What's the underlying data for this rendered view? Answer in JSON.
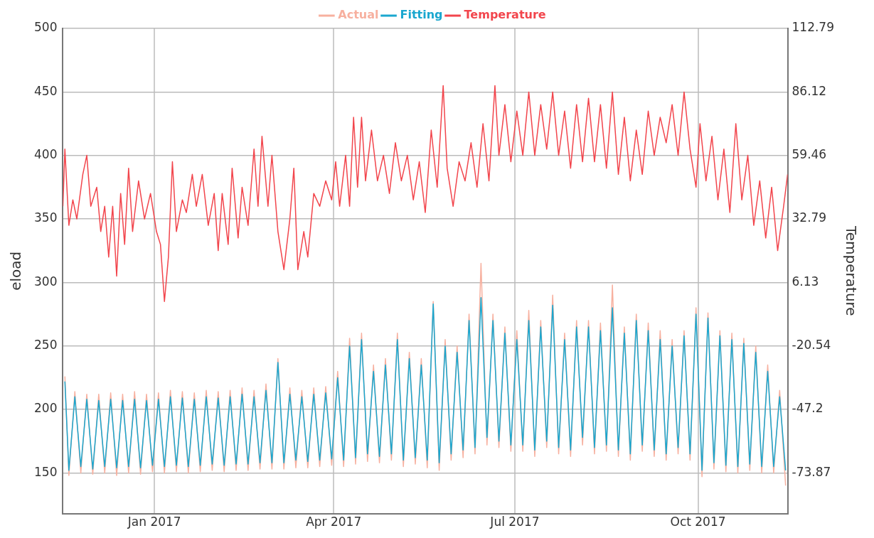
{
  "chart_data": {
    "type": "line",
    "ylabel": "eload",
    "y2label": "Temperature",
    "legend": "top",
    "grid": true,
    "xlim": [
      "2016-11-16",
      "2017-11-15"
    ],
    "xticks": [
      {
        "value": "2017-01-01",
        "label": "Jan 2017"
      },
      {
        "value": "2017-04-01",
        "label": "Apr 2017"
      },
      {
        "value": "2017-07-01",
        "label": "Jul 2017"
      },
      {
        "value": "2017-10-01",
        "label": "Oct 2017"
      }
    ],
    "ylim": [
      118,
      500
    ],
    "yticks": [
      150,
      200,
      250,
      300,
      350,
      400,
      450,
      500
    ],
    "y2lim": [
      -90.93,
      112.79
    ],
    "y2ticks": [
      -73.87,
      -47.2,
      -20.54,
      6.13,
      32.79,
      59.46,
      86.12,
      112.79
    ],
    "x": [
      "2016-11-17",
      "2016-11-19",
      "2016-11-22",
      "2016-11-25",
      "2016-11-28",
      "2016-12-01",
      "2016-12-04",
      "2016-12-07",
      "2016-12-10",
      "2016-12-13",
      "2016-12-16",
      "2016-12-19",
      "2016-12-22",
      "2016-12-25",
      "2016-12-28",
      "2016-12-31",
      "2017-01-03",
      "2017-01-06",
      "2017-01-09",
      "2017-01-12",
      "2017-01-15",
      "2017-01-18",
      "2017-01-21",
      "2017-01-24",
      "2017-01-27",
      "2017-01-30",
      "2017-02-02",
      "2017-02-05",
      "2017-02-08",
      "2017-02-11",
      "2017-02-14",
      "2017-02-17",
      "2017-02-20",
      "2017-02-23",
      "2017-02-26",
      "2017-03-01",
      "2017-03-04",
      "2017-03-07",
      "2017-03-10",
      "2017-03-13",
      "2017-03-16",
      "2017-03-19",
      "2017-03-22",
      "2017-03-25",
      "2017-03-28",
      "2017-03-31",
      "2017-04-03",
      "2017-04-06",
      "2017-04-09",
      "2017-04-12",
      "2017-04-15",
      "2017-04-18",
      "2017-04-21",
      "2017-04-24",
      "2017-04-27",
      "2017-04-30",
      "2017-05-03",
      "2017-05-06",
      "2017-05-09",
      "2017-05-12",
      "2017-05-15",
      "2017-05-18",
      "2017-05-21",
      "2017-05-24",
      "2017-05-27",
      "2017-05-30",
      "2017-06-02",
      "2017-06-05",
      "2017-06-08",
      "2017-06-11",
      "2017-06-14",
      "2017-06-17",
      "2017-06-20",
      "2017-06-23",
      "2017-06-26",
      "2017-06-29",
      "2017-07-02",
      "2017-07-05",
      "2017-07-08",
      "2017-07-11",
      "2017-07-14",
      "2017-07-17",
      "2017-07-20",
      "2017-07-23",
      "2017-07-26",
      "2017-07-29",
      "2017-08-01",
      "2017-08-04",
      "2017-08-07",
      "2017-08-10",
      "2017-08-13",
      "2017-08-16",
      "2017-08-19",
      "2017-08-22",
      "2017-08-25",
      "2017-08-28",
      "2017-08-31",
      "2017-09-03",
      "2017-09-06",
      "2017-09-09",
      "2017-09-12",
      "2017-09-15",
      "2017-09-18",
      "2017-09-21",
      "2017-09-24",
      "2017-09-27",
      "2017-09-30",
      "2017-10-03",
      "2017-10-06",
      "2017-10-09",
      "2017-10-12",
      "2017-10-15",
      "2017-10-18",
      "2017-10-21",
      "2017-10-24",
      "2017-10-27",
      "2017-10-30",
      "2017-11-02",
      "2017-11-05",
      "2017-11-08",
      "2017-11-11",
      "2017-11-14"
    ],
    "series": [
      {
        "name": "Actual",
        "color": "#f7b09f",
        "values": [
          226,
          148,
          214,
          150,
          212,
          149,
          212,
          150,
          213,
          148,
          212,
          150,
          214,
          149,
          212,
          151,
          213,
          150,
          215,
          151,
          214,
          150,
          213,
          151,
          215,
          152,
          214,
          151,
          215,
          152,
          217,
          152,
          215,
          153,
          220,
          153,
          240,
          153,
          217,
          154,
          215,
          154,
          217,
          155,
          218,
          156,
          230,
          155,
          256,
          157,
          260,
          159,
          235,
          158,
          240,
          160,
          260,
          155,
          245,
          157,
          240,
          154,
          285,
          152,
          255,
          160,
          250,
          162,
          275,
          165,
          315,
          172,
          275,
          170,
          265,
          167,
          262,
          167,
          278,
          163,
          270,
          170,
          290,
          165,
          260,
          163,
          270,
          172,
          270,
          165,
          268,
          167,
          298,
          163,
          265,
          160,
          275,
          167,
          268,
          163,
          262,
          160,
          255,
          165,
          262,
          160,
          280,
          147,
          276,
          153,
          262,
          151,
          260,
          150,
          256,
          152,
          250,
          150,
          235,
          150,
          215,
          140
        ]
      },
      {
        "name": "Fitting",
        "color": "#1aa7cf",
        "values": [
          222,
          152,
          210,
          155,
          208,
          153,
          207,
          155,
          208,
          154,
          207,
          155,
          208,
          154,
          207,
          156,
          208,
          155,
          210,
          156,
          209,
          155,
          208,
          156,
          210,
          157,
          209,
          156,
          210,
          157,
          212,
          157,
          210,
          158,
          215,
          158,
          237,
          158,
          212,
          160,
          210,
          159,
          212,
          160,
          213,
          161,
          225,
          160,
          250,
          162,
          255,
          165,
          230,
          163,
          235,
          165,
          255,
          160,
          240,
          162,
          235,
          160,
          283,
          158,
          250,
          165,
          245,
          168,
          270,
          170,
          288,
          178,
          270,
          175,
          260,
          172,
          255,
          172,
          270,
          168,
          265,
          175,
          282,
          170,
          255,
          168,
          265,
          178,
          265,
          170,
          262,
          172,
          280,
          168,
          260,
          165,
          270,
          172,
          262,
          168,
          255,
          165,
          250,
          170,
          258,
          165,
          275,
          152,
          272,
          158,
          258,
          156,
          255,
          155,
          252,
          157,
          245,
          155,
          230,
          155,
          210,
          152
        ]
      },
      {
        "name": "Temperature",
        "color": "#f2454c",
        "axis": "y2",
        "x": [
          "2016-11-16",
          "2016-11-17",
          "2016-11-19",
          "2016-11-21",
          "2016-11-23",
          "2016-11-26",
          "2016-11-28",
          "2016-11-30",
          "2016-12-03",
          "2016-12-05",
          "2016-12-07",
          "2016-12-09",
          "2016-12-11",
          "2016-12-13",
          "2016-12-15",
          "2016-12-17",
          "2016-12-19",
          "2016-12-21",
          "2016-12-24",
          "2016-12-27",
          "2016-12-30",
          "2017-01-02",
          "2017-01-04",
          "2017-01-06",
          "2017-01-08",
          "2017-01-10",
          "2017-01-12",
          "2017-01-15",
          "2017-01-17",
          "2017-01-20",
          "2017-01-22",
          "2017-01-25",
          "2017-01-28",
          "2017-01-31",
          "2017-02-02",
          "2017-02-04",
          "2017-02-07",
          "2017-02-09",
          "2017-02-12",
          "2017-02-14",
          "2017-02-17",
          "2017-02-20",
          "2017-02-22",
          "2017-02-24",
          "2017-02-27",
          "2017-03-01",
          "2017-03-04",
          "2017-03-07",
          "2017-03-10",
          "2017-03-12",
          "2017-03-14",
          "2017-03-17",
          "2017-03-19",
          "2017-03-22",
          "2017-03-25",
          "2017-03-28",
          "2017-03-31",
          "2017-04-02",
          "2017-04-04",
          "2017-04-07",
          "2017-04-09",
          "2017-04-11",
          "2017-04-13",
          "2017-04-15",
          "2017-04-17",
          "2017-04-20",
          "2017-04-23",
          "2017-04-26",
          "2017-04-29",
          "2017-05-02",
          "2017-05-05",
          "2017-05-08",
          "2017-05-11",
          "2017-05-14",
          "2017-05-17",
          "2017-05-20",
          "2017-05-23",
          "2017-05-26",
          "2017-05-28",
          "2017-05-31",
          "2017-06-03",
          "2017-06-06",
          "2017-06-09",
          "2017-06-12",
          "2017-06-15",
          "2017-06-18",
          "2017-06-21",
          "2017-06-23",
          "2017-06-26",
          "2017-06-29",
          "2017-07-02",
          "2017-07-05",
          "2017-07-08",
          "2017-07-11",
          "2017-07-14",
          "2017-07-17",
          "2017-07-20",
          "2017-07-23",
          "2017-07-26",
          "2017-07-29",
          "2017-08-01",
          "2017-08-04",
          "2017-08-07",
          "2017-08-10",
          "2017-08-13",
          "2017-08-16",
          "2017-08-19",
          "2017-08-22",
          "2017-08-25",
          "2017-08-28",
          "2017-08-31",
          "2017-09-03",
          "2017-09-06",
          "2017-09-09",
          "2017-09-12",
          "2017-09-15",
          "2017-09-18",
          "2017-09-21",
          "2017-09-24",
          "2017-09-27",
          "2017-09-30",
          "2017-10-02",
          "2017-10-05",
          "2017-10-08",
          "2017-10-11",
          "2017-10-14",
          "2017-10-17",
          "2017-10-20",
          "2017-10-23",
          "2017-10-26",
          "2017-10-29",
          "2017-11-01",
          "2017-11-04",
          "2017-11-07",
          "2017-11-10",
          "2017-11-13",
          "2017-11-15"
        ],
        "values": [
          38.1,
          62.1,
          30.1,
          40.8,
          32.8,
          51.5,
          59.5,
          38.1,
          46.1,
          27.5,
          38.1,
          16.8,
          38.1,
          8.8,
          43.5,
          22.1,
          54.1,
          27.5,
          48.8,
          32.8,
          43.5,
          27.5,
          22.1,
          -1.9,
          16.8,
          56.8,
          27.5,
          40.8,
          35.5,
          51.5,
          38.1,
          51.5,
          30.1,
          43.5,
          19.5,
          43.5,
          22.1,
          54.1,
          24.8,
          46.1,
          30.1,
          62.1,
          38.1,
          67.5,
          38.1,
          59.5,
          27.5,
          11.5,
          32.8,
          54.1,
          11.5,
          27.5,
          16.8,
          43.5,
          38.1,
          48.8,
          40.8,
          56.8,
          38.1,
          59.5,
          38.1,
          75.5,
          46.1,
          75.5,
          48.8,
          70.1,
          48.8,
          59.5,
          43.5,
          64.8,
          48.8,
          59.5,
          40.8,
          56.8,
          35.5,
          70.1,
          46.1,
          88.8,
          54.1,
          38.1,
          56.8,
          48.8,
          64.8,
          46.1,
          72.8,
          48.8,
          88.8,
          59.5,
          80.8,
          56.8,
          78.1,
          59.5,
          86.1,
          59.5,
          80.8,
          62.1,
          86.1,
          59.5,
          78.1,
          54.1,
          80.8,
          56.8,
          83.5,
          56.8,
          80.8,
          54.1,
          86.1,
          51.5,
          75.5,
          48.8,
          70.1,
          51.5,
          78.1,
          59.5,
          75.5,
          64.8,
          80.8,
          59.5,
          86.1,
          62.1,
          46.1,
          72.8,
          48.8,
          67.5,
          40.8,
          62.1,
          35.5,
          72.8,
          40.8,
          59.5,
          30.1,
          48.8,
          24.8,
          46.1,
          19.5,
          38.1,
          51.5
        ]
      }
    ]
  }
}
